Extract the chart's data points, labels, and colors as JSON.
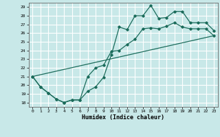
{
  "xlabel": "Humidex (Indice chaleur)",
  "bg_color": "#c8e8e8",
  "grid_color": "#ffffff",
  "line_color": "#1a6b5a",
  "xlim": [
    -0.5,
    23.5
  ],
  "ylim": [
    17.5,
    29.5
  ],
  "xticks": [
    0,
    1,
    2,
    3,
    4,
    5,
    6,
    7,
    8,
    9,
    10,
    11,
    12,
    13,
    14,
    15,
    16,
    17,
    18,
    19,
    20,
    21,
    22,
    23
  ],
  "yticks": [
    18,
    19,
    20,
    21,
    22,
    23,
    24,
    25,
    26,
    27,
    28,
    29
  ],
  "series1_x": [
    0,
    1,
    2,
    3,
    4,
    5,
    6,
    7,
    8,
    9,
    10,
    11,
    12,
    13,
    14,
    15,
    16,
    17,
    18,
    19,
    20,
    21,
    22,
    23
  ],
  "series1_y": [
    21.0,
    19.8,
    19.1,
    18.4,
    18.0,
    18.3,
    18.3,
    19.3,
    19.8,
    20.9,
    23.5,
    26.7,
    26.4,
    28.0,
    28.0,
    29.2,
    27.7,
    27.8,
    28.5,
    28.5,
    27.2,
    27.2,
    27.2,
    26.3
  ],
  "series2_x": [
    0,
    1,
    2,
    3,
    4,
    5,
    6,
    7,
    8,
    9,
    10,
    11,
    12,
    13,
    14,
    15,
    16,
    17,
    18,
    19,
    20,
    21,
    22,
    23
  ],
  "series2_y": [
    21.0,
    19.8,
    19.1,
    18.4,
    18.0,
    18.3,
    18.3,
    21.0,
    22.0,
    22.3,
    23.9,
    24.0,
    24.7,
    25.3,
    26.5,
    26.6,
    26.5,
    26.8,
    27.2,
    26.7,
    26.5,
    26.5,
    26.5,
    25.7
  ],
  "series3_x": [
    0,
    23
  ],
  "series3_y": [
    21.0,
    25.7
  ]
}
